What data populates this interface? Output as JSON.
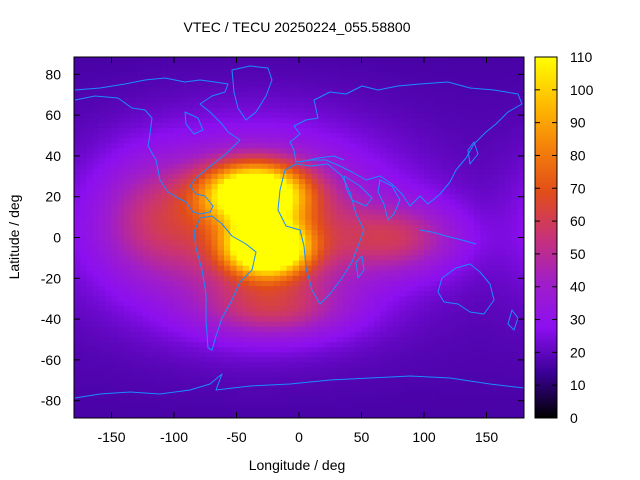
{
  "chart_data": {
    "type": "heatmap",
    "title": "VTEC / TECU 20250224_055.58800",
    "xlabel": "Longitude / deg",
    "ylabel": "Latitude / deg",
    "xlim": [
      -180,
      180
    ],
    "ylim": [
      -88.5,
      88.5
    ],
    "x_ticks": [
      -150,
      -100,
      -50,
      0,
      50,
      100,
      150
    ],
    "x_tick_labels": [
      "-150",
      "-100",
      "-50",
      "0",
      "50",
      "100",
      "150"
    ],
    "y_ticks": [
      -80,
      -60,
      -40,
      -20,
      0,
      20,
      40,
      60,
      80
    ],
    "y_tick_labels": [
      "-80",
      "-60",
      "-40",
      "-20",
      "0",
      "20",
      "40",
      "60",
      "80"
    ],
    "colorbar": {
      "min": 0,
      "max": 110,
      "ticks": [
        0,
        10,
        20,
        30,
        40,
        50,
        60,
        70,
        80,
        90,
        100,
        110
      ],
      "tick_labels": [
        "0",
        "10",
        "20",
        "30",
        "40",
        "50",
        "60",
        "70",
        "80",
        "90",
        "100",
        "110"
      ],
      "colormap": [
        "#000000",
        "#3a0096",
        "#8c0ff0",
        "#a01ec8",
        "#c83278",
        "#e14d19",
        "#f5820a",
        "#ffbe00",
        "#ffff00"
      ]
    },
    "background_level_tecu": 20,
    "features": [
      {
        "name": "equatorial-anomaly-crest-south",
        "lon": -25,
        "lat": -5,
        "peak_tecu": 108,
        "spread_lon": 22,
        "spread_lat": 9
      },
      {
        "name": "equatorial-anomaly-crest-north",
        "lon": -35,
        "lat": 22,
        "peak_tecu": 97,
        "spread_lon": 28,
        "spread_lat": 10
      },
      {
        "name": "dayside-plateau",
        "lon": -35,
        "lat": 5,
        "peak_tecu": 42,
        "spread_lon": 70,
        "spread_lat": 30
      },
      {
        "name": "eastern-extension",
        "lon": 80,
        "lat": 0,
        "peak_tecu": 28,
        "spread_lon": 35,
        "spread_lat": 12
      },
      {
        "name": "pacific-tail",
        "lon": -120,
        "lat": 10,
        "peak_tecu": 18,
        "spread_lon": 30,
        "spread_lat": 20
      },
      {
        "name": "south-atlantic-extension",
        "lon": -20,
        "lat": -35,
        "peak_tecu": 25,
        "spread_lon": 40,
        "spread_lat": 10
      }
    ],
    "coastline_color": "#1a8cff"
  }
}
